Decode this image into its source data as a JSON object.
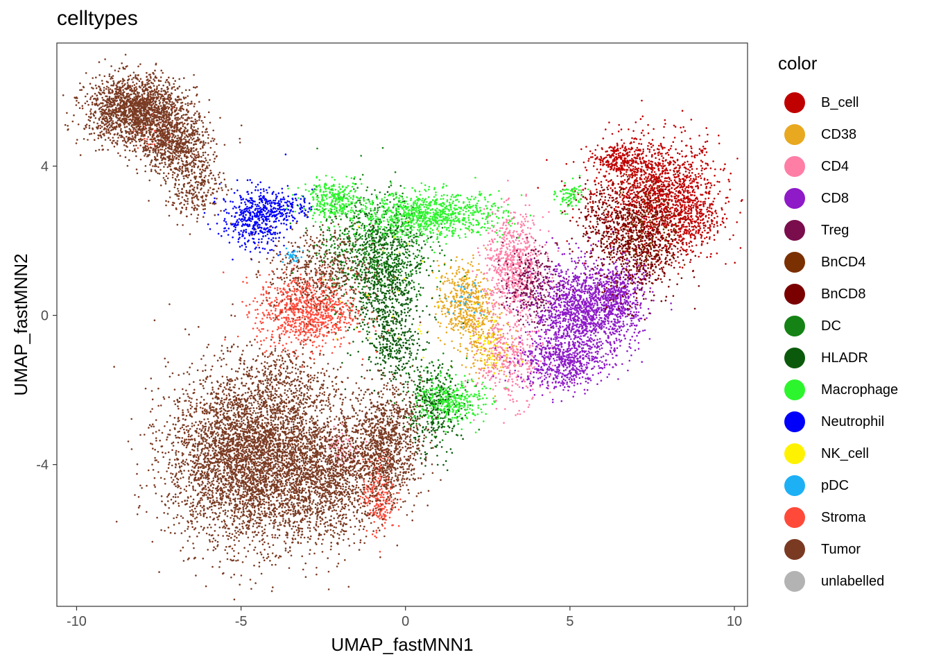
{
  "chart_data": {
    "type": "scatter",
    "title": "celltypes",
    "xlabel": "UMAP_fastMNN1",
    "ylabel": "UMAP_fastMNN2",
    "xlim": [
      -10.6,
      10.4
    ],
    "ylim": [
      -7.8,
      7.3
    ],
    "x_ticks": [
      -10,
      -5,
      0,
      5,
      10
    ],
    "x_tick_labels": [
      "-10",
      "-5",
      "0",
      "5",
      "10"
    ],
    "y_ticks": [
      -4,
      0,
      4
    ],
    "y_tick_labels": [
      "-4",
      "0",
      "4"
    ],
    "grid": false,
    "legend_position": "right",
    "legend_title": "color",
    "series": [
      {
        "name": "B_cell",
        "color": "#C00000",
        "clusters": [
          {
            "x": 7.6,
            "y": 3.3,
            "sx": 0.95,
            "sy": 0.75,
            "n": 1400
          },
          {
            "x": 6.4,
            "y": 4.2,
            "sx": 0.35,
            "sy": 0.2,
            "n": 200
          },
          {
            "x": 8.6,
            "y": 2.6,
            "sx": 0.5,
            "sy": 0.55,
            "n": 350
          }
        ]
      },
      {
        "name": "CD38",
        "color": "#E8A820",
        "clusters": [
          {
            "x": 1.8,
            "y": 0.3,
            "sx": 0.4,
            "sy": 0.55,
            "n": 500
          },
          {
            "x": 2.5,
            "y": -0.8,
            "sx": 0.35,
            "sy": 0.45,
            "n": 150
          }
        ]
      },
      {
        "name": "CD4",
        "color": "#FF7EA6",
        "clusters": [
          {
            "x": 3.3,
            "y": 1.3,
            "sx": 0.45,
            "sy": 0.7,
            "n": 700
          },
          {
            "x": 3.2,
            "y": -1.2,
            "sx": 0.5,
            "sy": 0.6,
            "n": 350
          },
          {
            "x": -1.9,
            "y": -3.5,
            "sx": 0.3,
            "sy": 0.3,
            "n": 60
          }
        ]
      },
      {
        "name": "CD8",
        "color": "#8E1AC8",
        "clusters": [
          {
            "x": 5.4,
            "y": 0.1,
            "sx": 0.75,
            "sy": 0.65,
            "n": 1400
          },
          {
            "x": 4.7,
            "y": -1.3,
            "sx": 0.65,
            "sy": 0.35,
            "n": 500
          },
          {
            "x": 6.5,
            "y": 0.5,
            "sx": 0.4,
            "sy": 0.5,
            "n": 400
          }
        ]
      },
      {
        "name": "Treg",
        "color": "#7A0E4C",
        "clusters": [
          {
            "x": 3.8,
            "y": 0.8,
            "sx": 0.4,
            "sy": 0.5,
            "n": 250
          }
        ]
      },
      {
        "name": "BnCD4",
        "color": "#7A3000",
        "clusters": [
          {
            "x": 7.3,
            "y": 2.4,
            "sx": 0.5,
            "sy": 0.6,
            "n": 250
          }
        ]
      },
      {
        "name": "BnCD8",
        "color": "#7A0000",
        "clusters": [
          {
            "x": 7.1,
            "y": 1.8,
            "sx": 0.6,
            "sy": 0.75,
            "n": 600
          },
          {
            "x": 6.0,
            "y": 2.6,
            "sx": 0.5,
            "sy": 0.5,
            "n": 200
          }
        ]
      },
      {
        "name": "DC",
        "color": "#148214",
        "clusters": [
          {
            "x": -1.0,
            "y": 1.8,
            "sx": 0.85,
            "sy": 0.75,
            "n": 800
          },
          {
            "x": 0.8,
            "y": -2.2,
            "sx": 0.45,
            "sy": 0.5,
            "n": 200
          }
        ]
      },
      {
        "name": "HLADR",
        "color": "#0B5A0B",
        "clusters": [
          {
            "x": -0.6,
            "y": 0.7,
            "sx": 0.55,
            "sy": 1.0,
            "n": 700
          },
          {
            "x": -0.3,
            "y": -0.8,
            "sx": 0.35,
            "sy": 0.45,
            "n": 200
          },
          {
            "x": 0.8,
            "y": -2.6,
            "sx": 0.45,
            "sy": 0.6,
            "n": 250
          }
        ]
      },
      {
        "name": "Macrophage",
        "color": "#2DF52D",
        "clusters": [
          {
            "x": 0.8,
            "y": 2.7,
            "sx": 1.1,
            "sy": 0.3,
            "n": 900
          },
          {
            "x": -2.2,
            "y": 3.1,
            "sx": 0.45,
            "sy": 0.25,
            "n": 300
          },
          {
            "x": 1.4,
            "y": -2.3,
            "sx": 0.5,
            "sy": 0.3,
            "n": 300
          },
          {
            "x": 5.0,
            "y": 3.2,
            "sx": 0.2,
            "sy": 0.2,
            "n": 80
          }
        ]
      },
      {
        "name": "Neutrophil",
        "color": "#0000FA",
        "clusters": [
          {
            "x": -4.6,
            "y": 2.6,
            "sx": 0.5,
            "sy": 0.4,
            "n": 450
          },
          {
            "x": -3.7,
            "y": 2.9,
            "sx": 0.45,
            "sy": 0.2,
            "n": 150
          }
        ]
      },
      {
        "name": "NK_cell",
        "color": "#FFF200",
        "clusters": [
          {
            "x": 2.6,
            "y": -0.8,
            "sx": 0.25,
            "sy": 0.35,
            "n": 50
          },
          {
            "x": 0.0,
            "y": 0.5,
            "sx": 1.5,
            "sy": 1.0,
            "n": 30
          }
        ]
      },
      {
        "name": "pDC",
        "color": "#1EB0F5",
        "clusters": [
          {
            "x": -3.4,
            "y": 1.6,
            "sx": 0.15,
            "sy": 0.1,
            "n": 40
          },
          {
            "x": 1.8,
            "y": 0.4,
            "sx": 0.3,
            "sy": 0.3,
            "n": 30
          }
        ]
      },
      {
        "name": "Stroma",
        "color": "#FF4A3A",
        "clusters": [
          {
            "x": -3.0,
            "y": 0.1,
            "sx": 0.75,
            "sy": 0.5,
            "n": 900
          },
          {
            "x": -0.8,
            "y": -4.8,
            "sx": 0.25,
            "sy": 0.5,
            "n": 250
          },
          {
            "x": -7.5,
            "y": 5.0,
            "sx": 0.4,
            "sy": 0.3,
            "n": 40
          }
        ]
      },
      {
        "name": "Tumor",
        "color": "#7A3A22",
        "clusters": [
          {
            "x": -8.2,
            "y": 5.5,
            "sx": 0.75,
            "sy": 0.45,
            "n": 1800
          },
          {
            "x": -7.0,
            "y": 4.6,
            "sx": 0.55,
            "sy": 0.4,
            "n": 700
          },
          {
            "x": -6.4,
            "y": 3.5,
            "sx": 0.45,
            "sy": 0.45,
            "n": 300
          },
          {
            "x": -4.8,
            "y": -3.8,
            "sx": 1.2,
            "sy": 1.15,
            "n": 4200
          },
          {
            "x": -2.4,
            "y": -4.3,
            "sx": 0.9,
            "sy": 0.9,
            "n": 1400
          },
          {
            "x": -0.6,
            "y": -3.4,
            "sx": 0.55,
            "sy": 0.75,
            "n": 1000
          },
          {
            "x": -2.6,
            "y": 1.2,
            "sx": 0.8,
            "sy": 0.6,
            "n": 450
          },
          {
            "x": -3.6,
            "y": -1.8,
            "sx": 0.8,
            "sy": 0.5,
            "n": 250
          }
        ]
      },
      {
        "name": "unlabelled",
        "color": "#B3B3B3",
        "clusters": []
      }
    ]
  }
}
